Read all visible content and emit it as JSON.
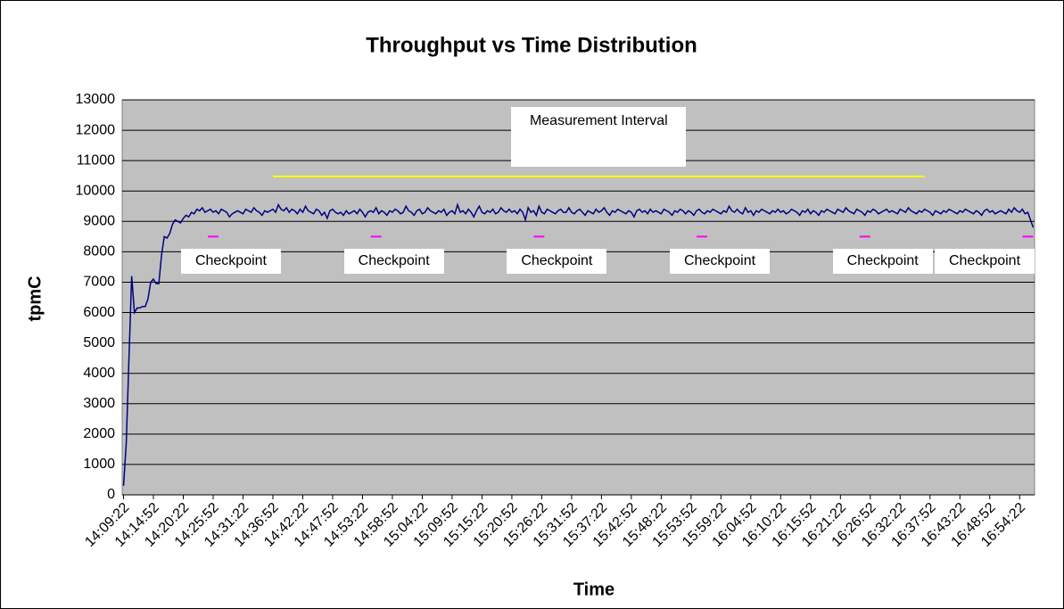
{
  "chart_data": {
    "type": "line",
    "title": "Throughput vs Time Distribution",
    "x_label": "Time",
    "y_label": "tpmC",
    "categories": [
      "14:09:22",
      null,
      null,
      null,
      null,
      null,
      null,
      null,
      null,
      null,
      null,
      "14:14:52",
      null,
      null,
      null,
      null,
      null,
      null,
      null,
      null,
      null,
      null,
      "14:20:22",
      null,
      null,
      null,
      null,
      null,
      null,
      null,
      null,
      null,
      null,
      "14:25:52",
      null,
      null,
      null,
      null,
      null,
      null,
      null,
      null,
      null,
      null,
      "14:31:22",
      null,
      null,
      null,
      null,
      null,
      null,
      null,
      null,
      null,
      null,
      "14:36:52",
      null,
      null,
      null,
      null,
      null,
      null,
      null,
      null,
      null,
      null,
      "14:42:22",
      null,
      null,
      null,
      null,
      null,
      null,
      null,
      null,
      null,
      null,
      "14:47:52",
      null,
      null,
      null,
      null,
      null,
      null,
      null,
      null,
      null,
      null,
      "14:53:22",
      null,
      null,
      null,
      null,
      null,
      null,
      null,
      null,
      null,
      null,
      "14:58:52",
      null,
      null,
      null,
      null,
      null,
      null,
      null,
      null,
      null,
      null,
      "15:04:22",
      null,
      null,
      null,
      null,
      null,
      null,
      null,
      null,
      null,
      null,
      "15:09:52",
      null,
      null,
      null,
      null,
      null,
      null,
      null,
      null,
      null,
      null,
      "15:15:22",
      null,
      null,
      null,
      null,
      null,
      null,
      null,
      null,
      null,
      null,
      "15:20:52",
      null,
      null,
      null,
      null,
      null,
      null,
      null,
      null,
      null,
      null,
      "15:26:22",
      null,
      null,
      null,
      null,
      null,
      null,
      null,
      null,
      null,
      null,
      "15:31:52",
      null,
      null,
      null,
      null,
      null,
      null,
      null,
      null,
      null,
      null,
      "15:37:22",
      null,
      null,
      null,
      null,
      null,
      null,
      null,
      null,
      null,
      null,
      "15:42:52",
      null,
      null,
      null,
      null,
      null,
      null,
      null,
      null,
      null,
      null,
      "15:48:22",
      null,
      null,
      null,
      null,
      null,
      null,
      null,
      null,
      null,
      null,
      "15:53:52",
      null,
      null,
      null,
      null,
      null,
      null,
      null,
      null,
      null,
      null,
      "15:59:22",
      null,
      null,
      null,
      null,
      null,
      null,
      null,
      null,
      null,
      null,
      "16:04:52",
      null,
      null,
      null,
      null,
      null,
      null,
      null,
      null,
      null,
      null,
      "16:10:22",
      null,
      null,
      null,
      null,
      null,
      null,
      null,
      null,
      null,
      null,
      "16:15:52",
      null,
      null,
      null,
      null,
      null,
      null,
      null,
      null,
      null,
      null,
      "16:21:22",
      null,
      null,
      null,
      null,
      null,
      null,
      null,
      null,
      null,
      null,
      "16:26:52",
      null,
      null,
      null,
      null,
      null,
      null,
      null,
      null,
      null,
      null,
      "16:32:22",
      null,
      null,
      null,
      null,
      null,
      null,
      null,
      null,
      null,
      null,
      "16:37:52",
      null,
      null,
      null,
      null,
      null,
      null,
      null,
      null,
      null,
      null,
      "16:43:22",
      null,
      null,
      null,
      null,
      null,
      null,
      null,
      null,
      null,
      null,
      "16:48:52",
      null,
      null,
      null,
      null,
      null,
      null,
      null,
      null,
      null,
      null,
      "16:54:22",
      null,
      null,
      null,
      null,
      null
    ],
    "values": [
      300,
      1700,
      4500,
      7200,
      6000,
      6150,
      6150,
      6200,
      6200,
      6450,
      7000,
      7100,
      6950,
      6950,
      7900,
      8500,
      8450,
      8600,
      8900,
      9050,
      9000,
      8950,
      9100,
      9200,
      9150,
      9300,
      9250,
      9400,
      9350,
      9450,
      9300,
      9350,
      9400,
      9300,
      9350,
      9250,
      9400,
      9350,
      9300,
      9150,
      9250,
      9300,
      9350,
      9300,
      9250,
      9400,
      9350,
      9300,
      9450,
      9350,
      9300,
      9200,
      9350,
      9300,
      9350,
      9400,
      9300,
      9550,
      9400,
      9350,
      9450,
      9300,
      9400,
      9350,
      9250,
      9400,
      9300,
      9500,
      9350,
      9300,
      9250,
      9400,
      9350,
      9200,
      9300,
      9100,
      9350,
      9400,
      9300,
      9250,
      9300,
      9200,
      9350,
      9250,
      9300,
      9350,
      9250,
      9400,
      9300,
      9150,
      9300,
      9350,
      9300,
      9450,
      9250,
      9350,
      9300,
      9200,
      9350,
      9300,
      9400,
      9350,
      9250,
      9300,
      9500,
      9350,
      9300,
      9200,
      9350,
      9400,
      9250,
      9300,
      9450,
      9350,
      9300,
      9250,
      9350,
      9300,
      9400,
      9200,
      9300,
      9350,
      9250,
      9550,
      9300,
      9350,
      9250,
      9400,
      9300,
      9150,
      9350,
      9500,
      9300,
      9250,
      9350,
      9300,
      9400,
      9250,
      9300,
      9450,
      9350,
      9300,
      9400,
      9300,
      9350,
      9250,
      9400,
      9300,
      9050,
      9450,
      9300,
      9350,
      9200,
      9500,
      9300,
      9250,
      9400,
      9350,
      9300,
      9250,
      9350,
      9400,
      9300,
      9300,
      9450,
      9300,
      9250,
      9350,
      9400,
      9300,
      9200,
      9350,
      9300,
      9250,
      9400,
      9300,
      9350,
      9450,
      9300,
      9200,
      9350,
      9300,
      9400,
      9350,
      9300,
      9250,
      9350,
      9300,
      9150,
      9350,
      9400,
      9300,
      9350,
      9250,
      9400,
      9300,
      9350,
      9300,
      9250,
      9400,
      9350,
      9300,
      9200,
      9350,
      9300,
      9400,
      9350,
      9250,
      9350,
      9300,
      9200,
      9350,
      9400,
      9300,
      9250,
      9350,
      9300,
      9400,
      9350,
      9300,
      9250,
      9350,
      9300,
      9500,
      9350,
      9300,
      9400,
      9300,
      9250,
      9450,
      9300,
      9350,
      9200,
      9350,
      9300,
      9400,
      9350,
      9300,
      9250,
      9350,
      9300,
      9400,
      9300,
      9350,
      9250,
      9300,
      9400,
      9350,
      9300,
      9200,
      9350,
      9300,
      9400,
      9250,
      9350,
      9300,
      9200,
      9350,
      9300,
      9400,
      9350,
      9300,
      9250,
      9400,
      9350,
      9300,
      9450,
      9350,
      9300,
      9250,
      9400,
      9350,
      9300,
      9200,
      9350,
      9300,
      9400,
      9350,
      9250,
      9300,
      9350,
      9400,
      9300,
      9350,
      9300,
      9250,
      9400,
      9350,
      9300,
      9450,
      9350,
      9300,
      9250,
      9350,
      9300,
      9400,
      9350,
      9300,
      9200,
      9350,
      9300,
      9250,
      9350,
      9300,
      9400,
      9350,
      9300,
      9250,
      9350,
      9300,
      9400,
      9350,
      9300,
      9250,
      9350,
      9300,
      9200,
      9350,
      9400,
      9300,
      9350,
      9250,
      9300,
      9350,
      9300,
      9250,
      9400,
      9300,
      9450,
      9350,
      9300,
      9400,
      9250,
      9300,
      9050,
      8800
    ],
    "color": "#000080",
    "ylim": [
      0,
      13000
    ],
    "yticks": [
      0,
      1000,
      2000,
      3000,
      4000,
      5000,
      6000,
      7000,
      8000,
      9000,
      10000,
      11000,
      12000,
      13000
    ],
    "grid": true,
    "annotations": {
      "measurement_interval": {
        "text": "Measurement Interval",
        "start": 55,
        "end": 295,
        "value": 10480,
        "color": "#ffff00"
      },
      "checkpoints": {
        "text": "Checkpoint",
        "value": 8500,
        "color": "#ff00ff",
        "x": [
          33,
          93,
          153,
          213,
          273,
          333
        ]
      }
    }
  }
}
